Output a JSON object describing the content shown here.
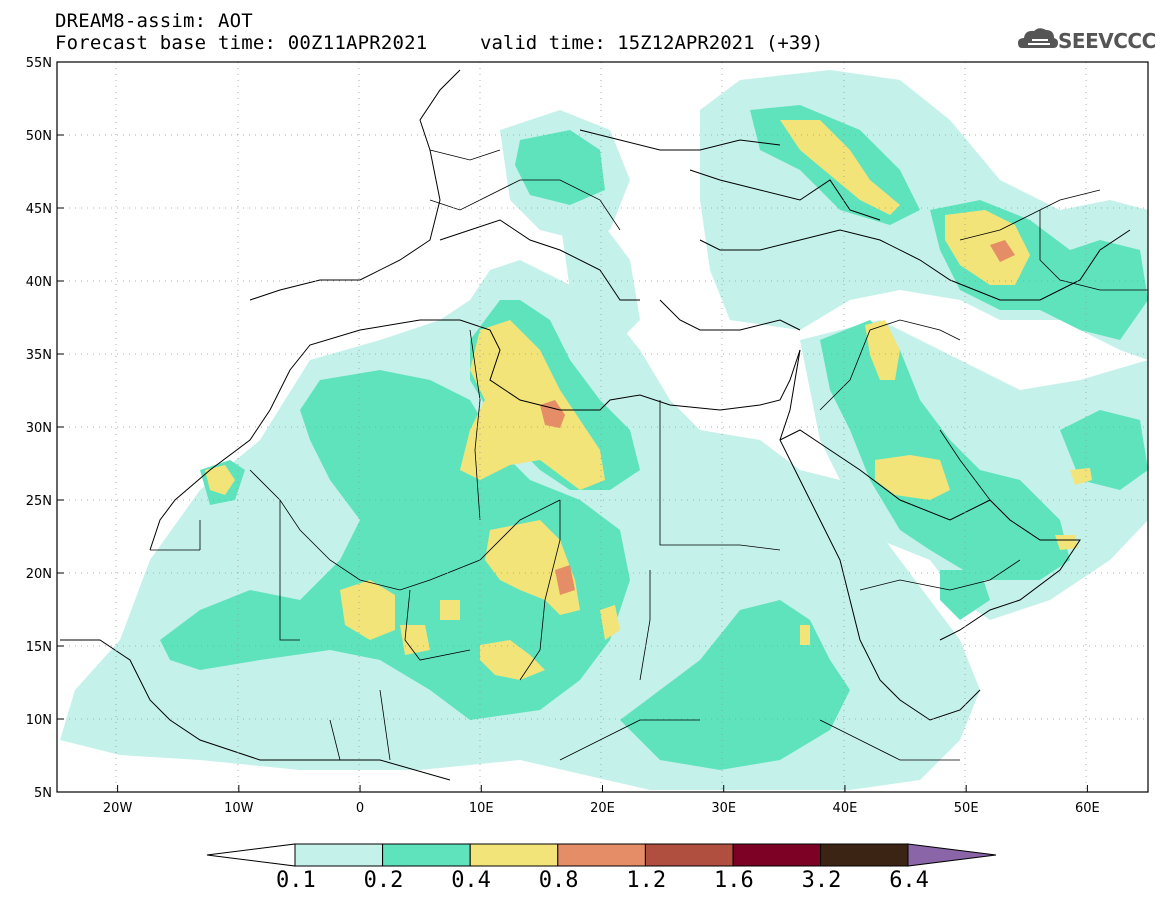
{
  "header": {
    "title": "DREAM8-assim: AOT",
    "base_time": "Forecast base time: 00Z11APR2021",
    "valid_time": "valid time: 15Z12APR2021 (+39)"
  },
  "logo": {
    "text": "SEEVCCC",
    "icon": "cloud-logo-icon"
  },
  "map": {
    "lon_range": [
      -25,
      65
    ],
    "lat_range": [
      5,
      55
    ],
    "lon_ticks": [
      "20W",
      "10W",
      "0",
      "10E",
      "20E",
      "30E",
      "40E",
      "50E",
      "60E"
    ],
    "lat_ticks": [
      "55N",
      "50N",
      "45N",
      "40N",
      "35N",
      "30N",
      "25N",
      "20N",
      "15N",
      "10N",
      "5N"
    ],
    "grid": "dotted"
  },
  "colorbar": {
    "labels": [
      "0.1",
      "0.2",
      "0.4",
      "0.8",
      "1.2",
      "1.6",
      "3.2",
      "6.4"
    ],
    "colors": [
      "#ffffff",
      "#c4f1ea",
      "#5fe3bd",
      "#f3e47a",
      "#e58d66",
      "#b04e3f",
      "#7d0025",
      "#3b2414",
      "#8a66a8"
    ]
  }
}
